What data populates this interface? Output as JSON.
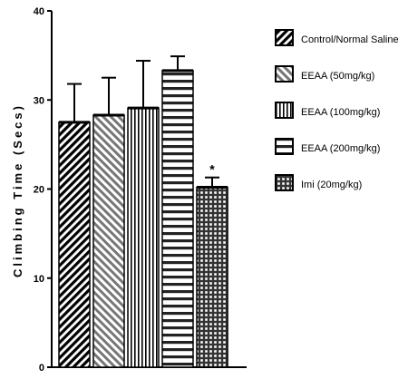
{
  "chart_data": {
    "type": "bar",
    "title": "",
    "xlabel": "",
    "ylabel": "Climbing Time (Secs)",
    "ylim": [
      0,
      40
    ],
    "yticks": [
      0,
      10,
      20,
      30,
      40
    ],
    "grid": false,
    "legend_position": "right",
    "series": [
      {
        "name": "Control/Normal Saline",
        "value": 27.5,
        "error": 4.3,
        "pattern": "diagonal-dense-black",
        "annotation": ""
      },
      {
        "name": "EEAA (50mg/kg)",
        "value": 28.3,
        "error": 4.2,
        "pattern": "diagonal-gray",
        "annotation": ""
      },
      {
        "name": "EEAA (100mg/kg)",
        "value": 29.1,
        "error": 5.3,
        "pattern": "vertical-lines",
        "annotation": ""
      },
      {
        "name": "EEAA (200mg/kg)",
        "value": 33.3,
        "error": 1.6,
        "pattern": "horizontal-lines",
        "annotation": ""
      },
      {
        "name": "Imi (20mg/kg)",
        "value": 20.2,
        "error": 1.1,
        "pattern": "grid",
        "annotation": "*"
      }
    ]
  }
}
